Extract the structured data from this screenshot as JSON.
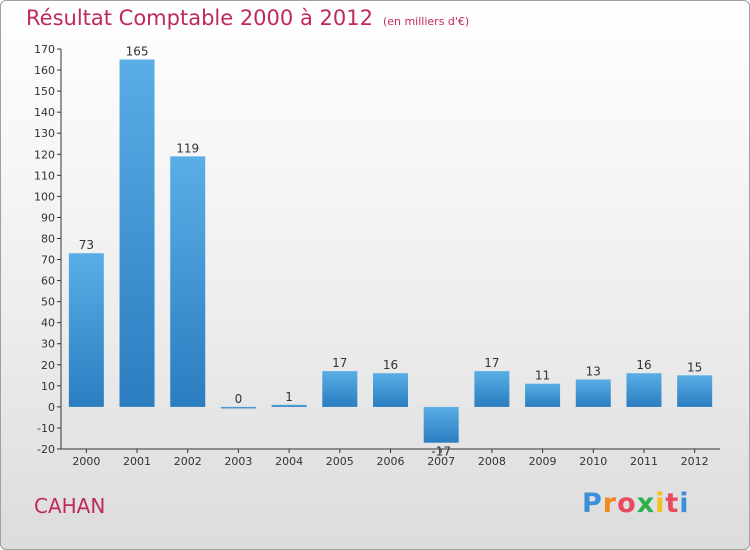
{
  "title": {
    "main": "Résultat Comptable 2000 à 2012",
    "unit": "(en milliers d'€)"
  },
  "town": "CAHAN",
  "logo": {
    "text": "Proxiti",
    "colors": [
      "#3a8fd8",
      "#f08a1e",
      "#e84a5f",
      "#2db14a",
      "#f2c21a",
      "#e84a5f",
      "#3a8fd8"
    ]
  },
  "colors": {
    "title": "#c0295a",
    "bar_light": "#5aaee6",
    "bar_dark": "#2a7dc0",
    "axis": "#333333"
  },
  "chart_data": {
    "type": "bar",
    "title": "Résultat Comptable 2000 à 2012 (en milliers d'€)",
    "categories": [
      "2000",
      "2001",
      "2002",
      "2003",
      "2004",
      "2005",
      "2006",
      "2007",
      "2008",
      "2009",
      "2010",
      "2011",
      "2012"
    ],
    "values": [
      73,
      165,
      119,
      0,
      1,
      17,
      16,
      -17,
      17,
      11,
      13,
      16,
      15
    ],
    "value_labels": [
      "73",
      "165",
      "119",
      "0",
      "1",
      "17",
      "16",
      "-17",
      "17",
      "11",
      "13",
      "16",
      "15"
    ],
    "ylim": [
      -20,
      170
    ],
    "yticks": [
      -20,
      -10,
      0,
      10,
      20,
      30,
      40,
      50,
      60,
      70,
      80,
      90,
      100,
      110,
      120,
      130,
      140,
      150,
      160,
      170
    ],
    "xlabel": "",
    "ylabel": "",
    "grid": false
  }
}
